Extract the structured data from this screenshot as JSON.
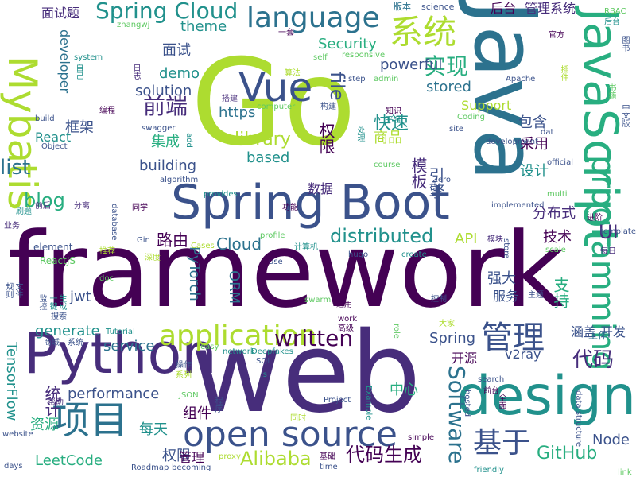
{
  "palette": {
    "dark_purple": "#440154",
    "indigo": "#472d7b",
    "blue": "#3b528b",
    "steel": "#2c728e",
    "teal": "#21918c",
    "green": "#28ae80",
    "light_green": "#5ec962",
    "lime": "#addc30"
  },
  "words": [
    {
      "text": "framework",
      "color": "#440154",
      "vertical": false
    },
    {
      "text": "Go",
      "color": "#addc30",
      "vertical": false
    },
    {
      "text": "web",
      "color": "#472d7b",
      "vertical": false
    },
    {
      "text": "Java",
      "color": "#2c728e",
      "vertical": true
    },
    {
      "text": "JavaScript",
      "color": "#28ae80",
      "vertical": true
    },
    {
      "text": "Spring Boot",
      "color": "#3b528b",
      "vertical": false
    },
    {
      "text": "Python",
      "color": "#472d7b",
      "vertical": false
    },
    {
      "text": "design",
      "color": "#21918c",
      "vertical": false
    },
    {
      "text": "open source",
      "color": "#3b528b",
      "vertical": false
    },
    {
      "text": "系统",
      "color": "#addc30",
      "vertical": false
    },
    {
      "text": "Vue",
      "color": "#3b528b",
      "vertical": false
    },
    {
      "text": "language",
      "color": "#2c728e",
      "vertical": false
    },
    {
      "text": "Mybatis",
      "color": "#addc30",
      "vertical": true
    },
    {
      "text": "Spring Cloud",
      "color": "#21918c",
      "vertical": false
    },
    {
      "text": "application",
      "color": "#addc30",
      "vertical": false
    },
    {
      "text": "管理",
      "color": "#3b528b",
      "vertical": false
    },
    {
      "text": "项目",
      "color": "#2c728e",
      "vertical": false
    },
    {
      "text": "基于",
      "color": "#3b528b",
      "vertical": false
    },
    {
      "text": "programming",
      "color": "#28ae80",
      "vertical": true
    },
    {
      "text": "Software",
      "color": "#2c728e",
      "vertical": true
    },
    {
      "text": "distributed",
      "color": "#21918c",
      "vertical": false
    },
    {
      "text": "written",
      "color": "#440154",
      "vertical": false
    },
    {
      "text": "代码",
      "color": "#472d7b",
      "vertical": false
    },
    {
      "text": "Alibaba",
      "color": "#addc30",
      "vertical": false
    },
    {
      "text": "GitHub",
      "color": "#28ae80",
      "vertical": false
    },
    {
      "text": "代码生成",
      "color": "#440154",
      "vertical": false
    },
    {
      "text": "实现",
      "color": "#28ae80",
      "vertical": false
    },
    {
      "text": "前端",
      "color": "#472d7b",
      "vertical": false
    },
    {
      "text": "file",
      "color": "#3b528b",
      "vertical": true
    },
    {
      "text": "theme",
      "color": "#21918c",
      "vertical": false
    },
    {
      "text": "面试",
      "color": "#3b528b",
      "vertical": false
    },
    {
      "text": "后台",
      "color": "#440154",
      "vertical": false
    },
    {
      "text": "管理系统",
      "color": "#472d7b",
      "vertical": false
    },
    {
      "text": "面试题",
      "color": "#472d7b",
      "vertical": false
    },
    {
      "text": "快速",
      "color": "#21918c",
      "vertical": false
    },
    {
      "text": "library",
      "color": "#addc30",
      "vertical": false
    },
    {
      "text": "based",
      "color": "#21918c",
      "vertical": false
    },
    {
      "text": "powerful",
      "color": "#3b528b",
      "vertical": false
    },
    {
      "text": "Security",
      "color": "#28ae80",
      "vertical": false
    },
    {
      "text": "stored",
      "color": "#2c728e",
      "vertical": false
    },
    {
      "text": "Support",
      "color": "#addc30",
      "vertical": false
    },
    {
      "text": "包含",
      "color": "#3b528b",
      "vertical": false
    },
    {
      "text": "采用",
      "color": "#440154",
      "vertical": false
    },
    {
      "text": "设计",
      "color": "#21918c",
      "vertical": false
    },
    {
      "text": "demo",
      "color": "#21918c",
      "vertical": false
    },
    {
      "text": "solution",
      "color": "#3b528b",
      "vertical": false
    },
    {
      "text": "https",
      "color": "#2c728e",
      "vertical": false
    },
    {
      "text": "框架",
      "color": "#3b528b",
      "vertical": false
    },
    {
      "text": "集成",
      "color": "#28ae80",
      "vertical": false
    },
    {
      "text": "building",
      "color": "#3b528b",
      "vertical": false
    },
    {
      "text": "list",
      "color": "#2c728e",
      "vertical": false
    },
    {
      "text": "blog",
      "color": "#28ae80",
      "vertical": false
    },
    {
      "text": "developer",
      "color": "#2c728e",
      "vertical": true
    },
    {
      "text": "React",
      "color": "#21918c",
      "vertical": false
    },
    {
      "text": "商品",
      "color": "#addc30",
      "vertical": false
    },
    {
      "text": "权限",
      "color": "#440154",
      "vertical": true
    },
    {
      "text": "引擎",
      "color": "#3b528b",
      "vertical": true
    },
    {
      "text": "模板",
      "color": "#472d7b",
      "vertical": true
    },
    {
      "text": "数据",
      "color": "#472d7b",
      "vertical": false
    },
    {
      "text": "路由",
      "color": "#440154",
      "vertical": false
    },
    {
      "text": "Cloud",
      "color": "#2c728e",
      "vertical": false
    },
    {
      "text": "分布式",
      "color": "#472d7b",
      "vertical": false
    },
    {
      "text": "技术",
      "color": "#440154",
      "vertical": false
    },
    {
      "text": "UI",
      "color": "#472d7b",
      "vertical": false
    },
    {
      "text": "API",
      "color": "#addc30",
      "vertical": false
    },
    {
      "text": "强大",
      "color": "#3b528b",
      "vertical": false
    },
    {
      "text": "服务",
      "color": "#3b528b",
      "vertical": false
    },
    {
      "text": "支持",
      "color": "#28ae80",
      "vertical": true
    },
    {
      "text": "开发",
      "color": "#3b528b",
      "vertical": false
    },
    {
      "text": "涵盖",
      "color": "#3b528b",
      "vertical": false
    },
    {
      "text": "工作",
      "color": "#2c728e",
      "vertical": false
    },
    {
      "text": "generate",
      "color": "#21918c",
      "vertical": false
    },
    {
      "text": "service",
      "color": "#2c728e",
      "vertical": false
    },
    {
      "text": "performance",
      "color": "#3b528b",
      "vertical": false
    },
    {
      "text": "PyTorch",
      "color": "#2c728e",
      "vertical": true
    },
    {
      "text": "ORM",
      "color": "#2c728e",
      "vertical": true
    },
    {
      "text": "Spring",
      "color": "#3b528b",
      "vertical": false
    },
    {
      "text": "开源",
      "color": "#440154",
      "vertical": false
    },
    {
      "text": "v2ray",
      "color": "#3b528b",
      "vertical": false
    },
    {
      "text": "中心",
      "color": "#28ae80",
      "vertical": false
    },
    {
      "text": "jwt",
      "color": "#3b528b",
      "vertical": false
    },
    {
      "text": "TensorFlow",
      "color": "#21918c",
      "vertical": true
    },
    {
      "text": "统计",
      "color": "#472d7b",
      "vertical": true
    },
    {
      "text": "资源",
      "color": "#28ae80",
      "vertical": false
    },
    {
      "text": "LeetCode",
      "color": "#28ae80",
      "vertical": false
    },
    {
      "text": "权限",
      "color": "#3b528b",
      "vertical": false
    },
    {
      "text": "管理",
      "color": "#440154",
      "vertical": false
    },
    {
      "text": "组件",
      "color": "#440154",
      "vertical": false
    },
    {
      "text": "每天",
      "color": "#21918c",
      "vertical": false
    },
    {
      "text": "Node",
      "color": "#3b528b",
      "vertical": false
    },
    {
      "text": "element",
      "color": "#3b528b",
      "vertical": false
    },
    {
      "text": "ReactJS",
      "color": "#5ec962",
      "vertical": false
    },
    {
      "text": "版本",
      "color": "#2c728e",
      "vertical": false
    },
    {
      "text": "science",
      "color": "#3b528b",
      "vertical": false
    },
    {
      "text": "RBAC",
      "color": "#5ec962",
      "vertical": false
    },
    {
      "text": "后台",
      "color": "#21918c",
      "vertical": false
    },
    {
      "text": "图书",
      "color": "#3b528b",
      "vertical": true
    },
    {
      "text": "zhangwj",
      "color": "#5ec962",
      "vertical": false
    },
    {
      "text": "一套",
      "color": "#440154",
      "vertical": false
    },
    {
      "text": "system",
      "color": "#21918c",
      "vertical": false
    },
    {
      "text": "自己",
      "color": "#21918c",
      "vertical": true
    },
    {
      "text": "日志",
      "color": "#472d7b",
      "vertical": true
    },
    {
      "text": "搭建",
      "color": "#472d7b",
      "vertical": false
    },
    {
      "text": "算法",
      "color": "#addc30",
      "vertical": false
    },
    {
      "text": "responsive",
      "color": "#5ec962",
      "vertical": false
    },
    {
      "text": "self",
      "color": "#5ec962",
      "vertical": false
    },
    {
      "text": "step",
      "color": "#3b528b",
      "vertical": false
    },
    {
      "text": "admin",
      "color": "#5ec962",
      "vertical": false
    },
    {
      "text": "Apache",
      "color": "#3b528b",
      "vertical": false
    },
    {
      "text": "官方",
      "color": "#440154",
      "vertical": false
    },
    {
      "text": "插件",
      "color": "#addc30",
      "vertical": true
    },
    {
      "text": "书籍",
      "color": "#5ec962",
      "vertical": true
    },
    {
      "text": "中文版",
      "color": "#3b528b",
      "vertical": true
    },
    {
      "text": "编程",
      "color": "#440154",
      "vertical": false
    },
    {
      "text": "computer",
      "color": "#5ec962",
      "vertical": false
    },
    {
      "text": "构建",
      "color": "#3b528b",
      "vertical": false
    },
    {
      "text": "知识",
      "color": "#440154",
      "vertical": false
    },
    {
      "text": "平台",
      "color": "#21918c",
      "vertical": false
    },
    {
      "text": "Coding",
      "color": "#5ec962",
      "vertical": false
    },
    {
      "text": "build",
      "color": "#3b528b",
      "vertical": false
    },
    {
      "text": "swagger",
      "color": "#3b528b",
      "vertical": false
    },
    {
      "text": "处理",
      "color": "#21918c",
      "vertical": true
    },
    {
      "text": "site",
      "color": "#3b528b",
      "vertical": false
    },
    {
      "text": "dat",
      "color": "#3b528b",
      "vertical": false
    },
    {
      "text": "development",
      "color": "#3b528b",
      "vertical": false
    },
    {
      "text": "Object",
      "color": "#3b528b",
      "vertical": false
    },
    {
      "text": "add",
      "color": "#21918c",
      "vertical": true
    },
    {
      "text": "course",
      "color": "#5ec962",
      "vertical": false
    },
    {
      "text": "official",
      "color": "#3b528b",
      "vertical": false
    },
    {
      "text": "algorithm",
      "color": "#3b528b",
      "vertical": false
    },
    {
      "text": "Zero",
      "color": "#3b528b",
      "vertical": false
    },
    {
      "text": "前后",
      "color": "#472d7b",
      "vertical": false
    },
    {
      "text": "分离",
      "color": "#472d7b",
      "vertical": false
    },
    {
      "text": "provides",
      "color": "#21918c",
      "vertical": false
    },
    {
      "text": "multi",
      "color": "#5ec962",
      "vertical": false
    },
    {
      "text": "刷题",
      "color": "#21918c",
      "vertical": false
    },
    {
      "text": "database",
      "color": "#3b528b",
      "vertical": true
    },
    {
      "text": "同学",
      "color": "#440154",
      "vertical": false
    },
    {
      "text": "功能",
      "color": "#440154",
      "vertical": false
    },
    {
      "text": "implemented",
      "color": "#3b528b",
      "vertical": false
    },
    {
      "text": "进阶",
      "color": "#440154",
      "vertical": false
    },
    {
      "text": "业务",
      "color": "#472d7b",
      "vertical": false
    },
    {
      "text": "Gin",
      "color": "#3b528b",
      "vertical": false
    },
    {
      "text": "profile",
      "color": "#5ec962",
      "vertical": false
    },
    {
      "text": "template",
      "color": "#3b528b",
      "vertical": false
    },
    {
      "text": "模块",
      "color": "#472d7b",
      "vertical": false
    },
    {
      "text": "推荐",
      "color": "#addc30",
      "vertical": false
    },
    {
      "text": "Cases",
      "color": "#addc30",
      "vertical": false
    },
    {
      "text": "计算机",
      "color": "#21918c",
      "vertical": false
    },
    {
      "text": "store",
      "color": "#3b528b",
      "vertical": true
    },
    {
      "text": "每日",
      "color": "#472d7b",
      "vertical": false
    },
    {
      "text": "深度",
      "color": "#addc30",
      "vertical": false
    },
    {
      "text": "hugo",
      "color": "#3b528b",
      "vertical": false
    },
    {
      "text": "create",
      "color": "#21918c",
      "vertical": false
    },
    {
      "text": "scale",
      "color": "#5ec962",
      "vertical": false
    },
    {
      "text": "use",
      "color": "#3b528b",
      "vertical": false
    },
    {
      "text": "提供",
      "color": "#440154",
      "vertical": true
    },
    {
      "text": "doc",
      "color": "#5ec962",
      "vertical": false
    },
    {
      "text": "规则",
      "color": "#3b528b",
      "vertical": true
    },
    {
      "text": "文件",
      "color": "#3b528b",
      "vertical": true
    },
    {
      "text": "监控",
      "color": "#3b528b",
      "vertical": true
    },
    {
      "text": "一键",
      "color": "#21918c",
      "vertical": true
    },
    {
      "text": "生成",
      "color": "#21918c",
      "vertical": true
    },
    {
      "text": "swarm",
      "color": "#5ec962",
      "vertical": false
    },
    {
      "text": "通用",
      "color": "#440154",
      "vertical": false
    },
    {
      "text": "work",
      "color": "#440154",
      "vertical": false
    },
    {
      "text": "高级",
      "color": "#440154",
      "vertical": false
    },
    {
      "text": "搜索",
      "color": "#3b528b",
      "vertical": false
    },
    {
      "text": "控制",
      "color": "#3b528b",
      "vertical": false
    },
    {
      "text": "主题",
      "color": "#3b528b",
      "vertical": false
    },
    {
      "text": "Tutorial",
      "color": "#21918c",
      "vertical": false
    },
    {
      "text": "role",
      "color": "#5ec962",
      "vertical": true
    },
    {
      "text": "大家",
      "color": "#addc30",
      "vertical": false
    },
    {
      "text": "商城",
      "color": "#3b528b",
      "vertical": false
    },
    {
      "text": "系统",
      "color": "#3b528b",
      "vertical": false
    },
    {
      "text": "easy",
      "color": "#5ec962",
      "vertical": false
    },
    {
      "text": "network",
      "color": "#21918c",
      "vertical": false
    },
    {
      "text": "Deepfakes",
      "color": "#21918c",
      "vertical": false
    },
    {
      "text": "操作",
      "color": "#3b528b",
      "vertical": false
    },
    {
      "text": "SQL",
      "color": "#3b528b",
      "vertical": false
    },
    {
      "text": "系列",
      "color": "#addc30",
      "vertical": false
    },
    {
      "text": "js",
      "color": "#21918c",
      "vertical": false
    },
    {
      "text": "search",
      "color": "#3b528b",
      "vertical": false
    },
    {
      "text": "前台",
      "color": "#440154",
      "vertical": false
    },
    {
      "text": "data structure",
      "color": "#3b528b",
      "vertical": true
    },
    {
      "text": "帮助",
      "color": "#472d7b",
      "vertical": false
    },
    {
      "text": "JSON",
      "color": "#5ec962",
      "vertical": false
    },
    {
      "text": "程序",
      "color": "#3b528b",
      "vertical": true
    },
    {
      "text": "Project",
      "color": "#3b528b",
      "vertical": false
    },
    {
      "text": "Example",
      "color": "#21918c",
      "vertical": true
    },
    {
      "text": "hosted",
      "color": "#3b528b",
      "vertical": true
    },
    {
      "text": "同时",
      "color": "#addc30",
      "vertical": false
    },
    {
      "text": "全面",
      "color": "#440154",
      "vertical": true
    },
    {
      "text": "website",
      "color": "#3b528b",
      "vertical": false
    },
    {
      "text": "simple",
      "color": "#440154",
      "vertical": false
    },
    {
      "text": "基础",
      "color": "#440154",
      "vertical": false
    },
    {
      "text": "days",
      "color": "#3b528b",
      "vertical": false
    },
    {
      "text": "Roadmap",
      "color": "#3b528b",
      "vertical": false
    },
    {
      "text": "becoming",
      "color": "#3b528b",
      "vertical": false
    },
    {
      "text": "proxy",
      "color": "#addc30",
      "vertical": false
    },
    {
      "text": "time",
      "color": "#3b528b",
      "vertical": false
    },
    {
      "text": "friendly",
      "color": "#21918c",
      "vertical": false
    },
    {
      "text": "link",
      "color": "#5ec962",
      "vertical": false
    }
  ]
}
